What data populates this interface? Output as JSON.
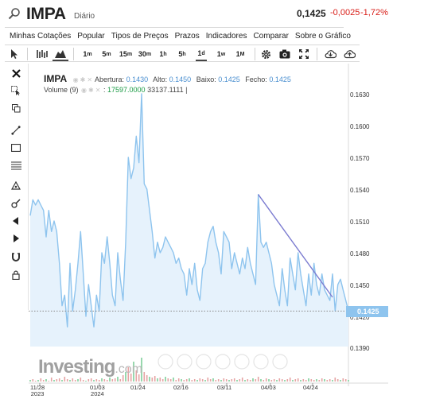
{
  "header": {
    "symbol": "IMPA",
    "period": "Diário",
    "price": "0,1425",
    "change": "-0,0025",
    "change_pct": "-1,72%",
    "down_color": "#d91e18"
  },
  "menu": [
    "Minhas Cotações",
    "Popular",
    "Tipos de Preços",
    "Prazos",
    "Indicadores",
    "Comparar",
    "Sobre o Gráfico"
  ],
  "toolbar": {
    "timeframes": [
      {
        "main": "1",
        "sup": "m"
      },
      {
        "main": "5",
        "sup": "m"
      },
      {
        "main": "15",
        "sup": "m"
      },
      {
        "main": "30",
        "sup": "m"
      },
      {
        "main": "1",
        "sup": "h"
      },
      {
        "main": "5",
        "sup": "h"
      },
      {
        "main": "1",
        "sup": "d"
      },
      {
        "main": "1",
        "sup": "w"
      },
      {
        "main": "1",
        "sup": "M"
      }
    ],
    "selected_timeframe": "1d"
  },
  "legend": {
    "symbol": "IMPA",
    "open_label": "Abertura:",
    "open": "0.1430",
    "high_label": "Alto:",
    "high": "0.1450",
    "low_label": "Baixo:",
    "low": "0.1425",
    "close_label": "Fecho:",
    "close": "0.1425",
    "volume_label": "Volume (9)",
    "volume_sep": ":",
    "volume_current": "17597.0000",
    "volume_ma": "33137.1111",
    "volume_ma_suffix": "|"
  },
  "watermark": {
    "brand": "Investing",
    "suffix": ".com"
  },
  "chart_data": {
    "type": "area",
    "title": "",
    "xlabel": "",
    "ylabel": "",
    "ylim": [
      0.137,
      0.165
    ],
    "y_ticks": [
      "0.1630",
      "0.1600",
      "0.1570",
      "0.1540",
      "0.1510",
      "0.1480",
      "0.1450",
      "0.1420",
      "0.1390"
    ],
    "x_ticks": [
      {
        "l1": "11/28",
        "l2": "2023"
      },
      {
        "l1": "01/03",
        "l2": "2024"
      },
      {
        "l1": "01/24",
        "l2": ""
      },
      {
        "l1": "02/16",
        "l2": ""
      },
      {
        "l1": "03/11",
        "l2": ""
      },
      {
        "l1": "04/03",
        "l2": ""
      },
      {
        "l1": "04/24",
        "l2": ""
      }
    ],
    "last_price": "0.1425",
    "line_color": "#8ec4ee",
    "fill_color": "#e6f2fc",
    "trendline_color": "#7b7bd0",
    "series": [
      {
        "values": [
          0.1515,
          0.153,
          0.1525,
          0.153,
          0.1525,
          0.152,
          0.1495,
          0.152,
          0.15,
          0.151,
          0.15,
          0.147,
          0.143,
          0.144,
          0.141,
          0.147,
          0.1425,
          0.1445,
          0.147,
          0.15,
          0.146,
          0.142,
          0.145,
          0.143,
          0.141,
          0.144,
          0.1425,
          0.148,
          0.147,
          0.1495,
          0.147,
          0.144,
          0.143,
          0.148,
          0.1455,
          0.1435,
          0.149,
          0.157,
          0.155,
          0.156,
          0.159,
          0.1565,
          0.163,
          0.1545,
          0.154,
          0.152,
          0.15,
          0.1475,
          0.149,
          0.148,
          0.1485,
          0.1495,
          0.149,
          0.1485,
          0.148,
          0.147,
          0.1475,
          0.1465,
          0.146,
          0.144,
          0.1465,
          0.145,
          0.147,
          0.1445,
          0.1435,
          0.1465,
          0.147,
          0.149,
          0.15,
          0.1505,
          0.149,
          0.148,
          0.146,
          0.15,
          0.1495,
          0.149,
          0.1465,
          0.148,
          0.147,
          0.146,
          0.1475,
          0.1465,
          0.1485,
          0.147,
          0.146,
          0.145,
          0.1535,
          0.149,
          0.1485,
          0.149,
          0.148,
          0.147,
          0.145,
          0.144,
          0.143,
          0.1465,
          0.1445,
          0.143,
          0.1475,
          0.146,
          0.1445,
          0.148,
          0.146,
          0.1445,
          0.143,
          0.146,
          0.144,
          0.147,
          0.145,
          0.144,
          0.146,
          0.1445,
          0.144,
          0.1435,
          0.146,
          0.1425,
          0.145,
          0.1455,
          0.1445,
          0.1435,
          0.1425
        ]
      }
    ],
    "volume": [
      2,
      3,
      1,
      2,
      4,
      2,
      3,
      1,
      5,
      2,
      3,
      4,
      2,
      6,
      3,
      2,
      4,
      2,
      3,
      5,
      2,
      1,
      3,
      4,
      2,
      3,
      2,
      4,
      3,
      2,
      5,
      3,
      4,
      6,
      3,
      8,
      12,
      18,
      10,
      25,
      14,
      9,
      30,
      12,
      8,
      6,
      5,
      7,
      4,
      5,
      3,
      6,
      4,
      3,
      5,
      2,
      4,
      3,
      2,
      3,
      4,
      2,
      3,
      2,
      4,
      3,
      2,
      5,
      3,
      4,
      2,
      3,
      2,
      4,
      3,
      2,
      3,
      4,
      2,
      3,
      5,
      2,
      3,
      2,
      4,
      3,
      6,
      3,
      2,
      4,
      3,
      2,
      3,
      2,
      4,
      3,
      2,
      3,
      5,
      2,
      3,
      4,
      2,
      3,
      2,
      4,
      3,
      2,
      3,
      2,
      4,
      3,
      2,
      3,
      2,
      5,
      3,
      2,
      4,
      3,
      2
    ]
  }
}
